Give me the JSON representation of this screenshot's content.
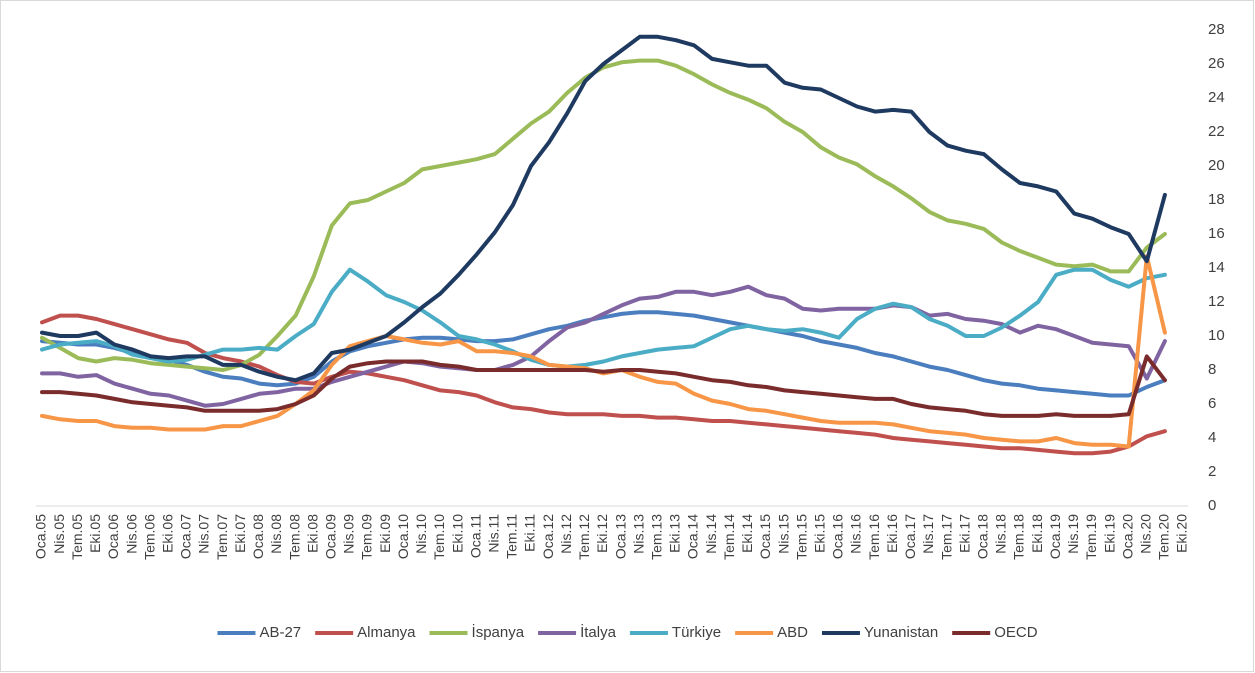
{
  "chart_data": {
    "type": "line",
    "categories": [
      "Oca.05",
      "Nis.05",
      "Tem.05",
      "Eki.05",
      "Oca.06",
      "Nis.06",
      "Tem.06",
      "Eki.06",
      "Oca.07",
      "Nis.07",
      "Tem.07",
      "Eki.07",
      "Oca.08",
      "Nis.08",
      "Tem.08",
      "Eki.08",
      "Oca.09",
      "Nis.09",
      "Tem.09",
      "Eki.09",
      "Oca.10",
      "Nis.10",
      "Tem.10",
      "Eki.10",
      "Oca.11",
      "Nis.11",
      "Tem.11",
      "Eki.11",
      "Oca.12",
      "Nis.12",
      "Tem.12",
      "Eki.12",
      "Oca.13",
      "Nis.13",
      "Tem.13",
      "Eki.13",
      "Oca.14",
      "Nis.14",
      "Tem.14",
      "Eki.14",
      "Oca.15",
      "Nis.15",
      "Tem.15",
      "Eki.15",
      "Oca.16",
      "Nis.16",
      "Tem.16",
      "Eki.16",
      "Oca.17",
      "Nis.17",
      "Tem.17",
      "Eki.17",
      "Oca.18",
      "Nis.18",
      "Tem.18",
      "Eki.18",
      "Oca.19",
      "Nis.19",
      "Tem.19",
      "Eki.19",
      "Oca.20",
      "Nis.20",
      "Tem.20",
      "Eki.20"
    ],
    "series": [
      {
        "name": "AB-27",
        "color": "#4a7ebf",
        "values": [
          9.7,
          9.6,
          9.5,
          9.5,
          9.3,
          9.0,
          8.8,
          8.6,
          8.3,
          7.9,
          7.6,
          7.5,
          7.2,
          7.1,
          7.2,
          7.6,
          8.5,
          9.1,
          9.4,
          9.6,
          9.8,
          9.9,
          9.9,
          9.8,
          9.7,
          9.7,
          9.8,
          10.1,
          10.4,
          10.6,
          10.9,
          11.1,
          11.3,
          11.4,
          11.4,
          11.3,
          11.2,
          11.0,
          10.8,
          10.6,
          10.4,
          10.2,
          10.0,
          9.7,
          9.5,
          9.3,
          9.0,
          8.8,
          8.5,
          8.2,
          8.0,
          7.7,
          7.4,
          7.2,
          7.1,
          6.9,
          6.8,
          6.7,
          6.6,
          6.5,
          6.5,
          7.0,
          7.4,
          null
        ]
      },
      {
        "name": "Almanya",
        "color": "#c0504d",
        "values": [
          10.8,
          11.2,
          11.2,
          11.0,
          10.7,
          10.4,
          10.1,
          9.8,
          9.6,
          9.0,
          8.7,
          8.5,
          8.2,
          7.7,
          7.3,
          7.2,
          7.6,
          7.9,
          7.8,
          7.6,
          7.4,
          7.1,
          6.8,
          6.7,
          6.5,
          6.1,
          5.8,
          5.7,
          5.5,
          5.4,
          5.4,
          5.4,
          5.3,
          5.3,
          5.2,
          5.2,
          5.1,
          5.0,
          5.0,
          4.9,
          4.8,
          4.7,
          4.6,
          4.5,
          4.4,
          4.3,
          4.2,
          4.0,
          3.9,
          3.8,
          3.7,
          3.6,
          3.5,
          3.4,
          3.4,
          3.3,
          3.2,
          3.1,
          3.1,
          3.2,
          3.5,
          4.1,
          4.4,
          null
        ]
      },
      {
        "name": "İspanya",
        "color": "#9bbb59",
        "values": [
          9.9,
          9.3,
          8.7,
          8.5,
          8.7,
          8.6,
          8.4,
          8.3,
          8.2,
          8.1,
          8.0,
          8.3,
          8.9,
          10.0,
          11.2,
          13.5,
          16.5,
          17.8,
          18.0,
          18.5,
          19.0,
          19.8,
          20.0,
          20.2,
          20.4,
          20.7,
          21.6,
          22.5,
          23.2,
          24.3,
          25.2,
          25.8,
          26.1,
          26.2,
          26.2,
          25.9,
          25.4,
          24.8,
          24.3,
          23.9,
          23.4,
          22.6,
          22.0,
          21.1,
          20.5,
          20.1,
          19.4,
          18.8,
          18.1,
          17.3,
          16.8,
          16.6,
          16.3,
          15.5,
          15.0,
          14.6,
          14.2,
          14.1,
          14.2,
          13.8,
          13.8,
          15.2,
          16.0,
          null
        ]
      },
      {
        "name": "İtalya",
        "color": "#8064a2",
        "values": [
          7.8,
          7.8,
          7.6,
          7.7,
          7.2,
          6.9,
          6.6,
          6.5,
          6.2,
          5.9,
          6.0,
          6.3,
          6.6,
          6.7,
          6.9,
          6.9,
          7.3,
          7.6,
          7.9,
          8.2,
          8.5,
          8.4,
          8.2,
          8.1,
          8.0,
          8.0,
          8.3,
          8.8,
          9.7,
          10.5,
          10.8,
          11.3,
          11.8,
          12.2,
          12.3,
          12.6,
          12.6,
          12.4,
          12.6,
          12.9,
          12.4,
          12.2,
          11.6,
          11.5,
          11.6,
          11.6,
          11.6,
          11.8,
          11.7,
          11.2,
          11.3,
          11.0,
          10.9,
          10.7,
          10.2,
          10.6,
          10.4,
          10.0,
          9.6,
          9.5,
          9.4,
          7.5,
          9.7,
          null
        ]
      },
      {
        "name": "Türkiye",
        "color": "#4bacc6",
        "values": [
          9.2,
          9.5,
          9.6,
          9.7,
          9.4,
          8.9,
          8.7,
          8.5,
          8.6,
          8.9,
          9.2,
          9.2,
          9.3,
          9.2,
          10.0,
          10.7,
          12.6,
          13.9,
          13.2,
          12.4,
          12.0,
          11.5,
          10.8,
          10.0,
          9.8,
          9.5,
          9.1,
          8.6,
          8.3,
          8.2,
          8.3,
          8.5,
          8.8,
          9.0,
          9.2,
          9.3,
          9.4,
          9.9,
          10.4,
          10.6,
          10.4,
          10.3,
          10.4,
          10.2,
          9.9,
          11.0,
          11.6,
          11.9,
          11.7,
          11.0,
          10.6,
          10.0,
          10.0,
          10.5,
          11.2,
          12.0,
          13.6,
          13.9,
          13.9,
          13.3,
          12.9,
          13.4,
          13.6,
          null
        ]
      },
      {
        "name": "ABD",
        "color": "#f79646",
        "values": [
          5.3,
          5.1,
          5.0,
          5.0,
          4.7,
          4.6,
          4.6,
          4.5,
          4.5,
          4.5,
          4.7,
          4.7,
          5.0,
          5.3,
          6.0,
          6.8,
          8.3,
          9.4,
          9.7,
          10.0,
          9.8,
          9.6,
          9.5,
          9.7,
          9.1,
          9.1,
          9.0,
          8.8,
          8.3,
          8.2,
          8.1,
          7.8,
          8.0,
          7.6,
          7.3,
          7.2,
          6.6,
          6.2,
          6.0,
          5.7,
          5.6,
          5.4,
          5.2,
          5.0,
          4.9,
          4.9,
          4.9,
          4.8,
          4.6,
          4.4,
          4.3,
          4.2,
          4.0,
          3.9,
          3.8,
          3.8,
          4.0,
          3.7,
          3.6,
          3.6,
          3.5,
          14.7,
          10.2,
          null
        ]
      },
      {
        "name": "Yunanistan",
        "color": "#1f3a60",
        "values": [
          10.2,
          10.0,
          10.0,
          10.2,
          9.5,
          9.2,
          8.8,
          8.7,
          8.8,
          8.8,
          8.3,
          8.3,
          7.9,
          7.6,
          7.4,
          7.8,
          9.0,
          9.2,
          9.6,
          10.0,
          10.8,
          11.7,
          12.5,
          13.6,
          14.8,
          16.1,
          17.7,
          20.0,
          21.4,
          23.1,
          25.0,
          26.0,
          26.8,
          27.6,
          27.6,
          27.4,
          27.1,
          26.3,
          26.1,
          25.9,
          25.9,
          24.9,
          24.6,
          24.5,
          24.0,
          23.5,
          23.2,
          23.3,
          23.2,
          22.0,
          21.2,
          20.9,
          20.7,
          19.8,
          19.0,
          18.8,
          18.5,
          17.2,
          16.9,
          16.4,
          16.0,
          14.4,
          18.3,
          null
        ]
      },
      {
        "name": "OECD",
        "color": "#7a2b2b",
        "values": [
          6.7,
          6.7,
          6.6,
          6.5,
          6.3,
          6.1,
          6.0,
          5.9,
          5.8,
          5.6,
          5.6,
          5.6,
          5.6,
          5.7,
          6.0,
          6.5,
          7.5,
          8.2,
          8.4,
          8.5,
          8.5,
          8.5,
          8.3,
          8.2,
          8.0,
          8.0,
          8.0,
          8.0,
          8.0,
          8.0,
          8.0,
          7.9,
          8.0,
          8.0,
          7.9,
          7.8,
          7.6,
          7.4,
          7.3,
          7.1,
          7.0,
          6.8,
          6.7,
          6.6,
          6.5,
          6.4,
          6.3,
          6.3,
          6.0,
          5.8,
          5.7,
          5.6,
          5.4,
          5.3,
          5.3,
          5.3,
          5.4,
          5.3,
          5.3,
          5.3,
          5.4,
          8.8,
          7.4,
          null
        ]
      }
    ],
    "ylim": [
      0,
      28
    ],
    "yticks": [
      0,
      2,
      4,
      6,
      8,
      10,
      12,
      14,
      16,
      18,
      20,
      22,
      24,
      26,
      28
    ],
    "grid": false,
    "legend": "bottom"
  }
}
